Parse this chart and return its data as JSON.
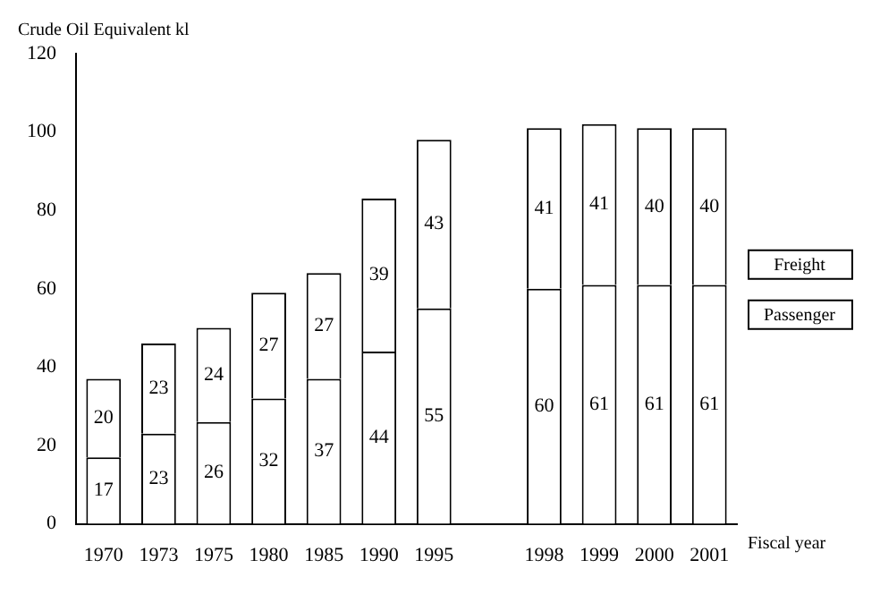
{
  "chart_data": {
    "type": "bar",
    "stacked": true,
    "ylabel": "Crude Oil Equivalent kl",
    "xlabel": "Fiscal year",
    "categories": [
      "1970",
      "1973",
      "1975",
      "1980",
      "1985",
      "1990",
      "1995",
      null,
      "1998",
      "1999",
      "2000",
      "2001"
    ],
    "series": [
      {
        "name": "Passenger",
        "color": "#ffffff",
        "values": [
          17,
          23,
          26,
          32,
          37,
          44,
          55,
          null,
          60,
          61,
          61,
          61
        ]
      },
      {
        "name": "Freight",
        "color": "#ffffff",
        "values": [
          20,
          23,
          24,
          27,
          27,
          39,
          43,
          null,
          41,
          41,
          40,
          40
        ]
      }
    ],
    "ylim": [
      0,
      120
    ],
    "yticks": [
      0,
      20,
      40,
      60,
      80,
      100,
      120
    ],
    "grid": false,
    "legend": "right",
    "data_labels": true
  }
}
